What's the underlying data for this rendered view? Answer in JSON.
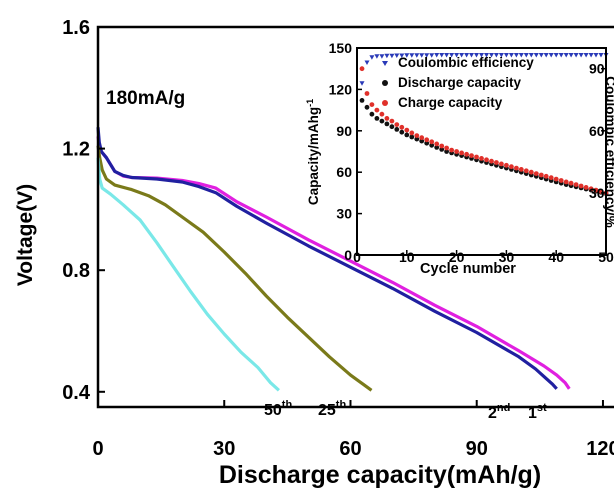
{
  "chart_data": [
    {
      "type": "line",
      "annotation": "180mA/g",
      "xlabel": "Discharge capacity(mAh/g)",
      "ylabel": "Voltage(V)",
      "xlim": [
        0,
        125
      ],
      "ylim": [
        0.35,
        1.6
      ],
      "xticks": [
        0,
        30,
        60,
        90,
        120
      ],
      "yticks": [
        0.4,
        0.8,
        1.2,
        1.6
      ],
      "xtick_labels": [
        "0",
        "30",
        "60",
        "90",
        "120"
      ],
      "ytick_labels": [
        "0.4",
        "0.8",
        "1.2",
        "1.6"
      ],
      "grid": false,
      "legend": "none",
      "series": [
        {
          "name": "1st",
          "label_base": "1",
          "label_sup": "st",
          "color": "#e020e0",
          "points": [
            [
              0,
              1.24
            ],
            [
              0.3,
              1.21
            ],
            [
              0.8,
              1.19
            ],
            [
              2,
              1.17
            ],
            [
              4,
              1.125
            ],
            [
              6,
              1.11
            ],
            [
              8,
              1.105
            ],
            [
              14,
              1.103
            ],
            [
              20,
              1.095
            ],
            [
              24,
              1.085
            ],
            [
              28,
              1.07
            ],
            [
              33,
              1.025
            ],
            [
              40,
              0.975
            ],
            [
              50,
              0.9
            ],
            [
              60,
              0.83
            ],
            [
              70,
              0.76
            ],
            [
              80,
              0.685
            ],
            [
              90,
              0.615
            ],
            [
              100,
              0.535
            ],
            [
              106,
              0.485
            ],
            [
              109,
              0.455
            ],
            [
              111,
              0.43
            ],
            [
              112,
              0.41
            ]
          ]
        },
        {
          "name": "2nd",
          "label_base": "2",
          "label_sup": "nd",
          "color": "#2020a0",
          "points": [
            [
              0,
              1.27
            ],
            [
              0.3,
              1.22
            ],
            [
              0.8,
              1.19
            ],
            [
              2,
              1.17
            ],
            [
              4,
              1.125
            ],
            [
              6,
              1.112
            ],
            [
              8,
              1.105
            ],
            [
              14,
              1.1
            ],
            [
              20,
              1.09
            ],
            [
              24,
              1.075
            ],
            [
              28,
              1.055
            ],
            [
              33,
              1.01
            ],
            [
              40,
              0.955
            ],
            [
              50,
              0.88
            ],
            [
              60,
              0.81
            ],
            [
              70,
              0.74
            ],
            [
              80,
              0.665
            ],
            [
              90,
              0.595
            ],
            [
              100,
              0.515
            ],
            [
              104,
              0.475
            ],
            [
              106,
              0.45
            ],
            [
              108,
              0.425
            ],
            [
              109,
              0.41
            ]
          ]
        },
        {
          "name": "25th",
          "label_base": "25",
          "label_sup": "th",
          "color": "#7a7a1a",
          "points": [
            [
              0,
              1.21
            ],
            [
              0.4,
              1.17
            ],
            [
              1,
              1.13
            ],
            [
              2,
              1.1
            ],
            [
              4,
              1.08
            ],
            [
              8,
              1.065
            ],
            [
              12,
              1.045
            ],
            [
              16,
              1.015
            ],
            [
              20,
              0.975
            ],
            [
              25,
              0.925
            ],
            [
              30,
              0.86
            ],
            [
              35,
              0.79
            ],
            [
              40,
              0.715
            ],
            [
              45,
              0.645
            ],
            [
              50,
              0.58
            ],
            [
              55,
              0.515
            ],
            [
              60,
              0.455
            ],
            [
              63,
              0.425
            ],
            [
              65,
              0.405
            ]
          ]
        },
        {
          "name": "50th",
          "label_base": "50",
          "label_sup": "th",
          "color": "#7ae8e8",
          "points": [
            [
              0,
              1.17
            ],
            [
              0.4,
              1.1
            ],
            [
              1,
              1.07
            ],
            [
              3,
              1.05
            ],
            [
              6,
              1.015
            ],
            [
              10,
              0.965
            ],
            [
              14,
              0.89
            ],
            [
              18,
              0.81
            ],
            [
              22,
              0.73
            ],
            [
              26,
              0.655
            ],
            [
              30,
              0.59
            ],
            [
              34,
              0.53
            ],
            [
              38,
              0.48
            ],
            [
              41,
              0.43
            ],
            [
              43,
              0.405
            ]
          ]
        }
      ]
    },
    {
      "type": "scatter",
      "xlabel": "Cycle number",
      "ylabel": "Capacity/mAhg-1",
      "y2label": "Coulombic efficiency/%",
      "xlim": [
        0,
        50
      ],
      "ylim": [
        0,
        150
      ],
      "y2lim": [
        0,
        100
      ],
      "xticks": [
        0,
        10,
        20,
        30,
        40,
        50
      ],
      "yticks": [
        0,
        30,
        60,
        90,
        120,
        150
      ],
      "y2ticks": [
        30,
        60,
        90
      ],
      "xtick_labels": [
        "0",
        "10",
        "20",
        "30",
        "40",
        "50"
      ],
      "ytick_labels": [
        "0",
        "30",
        "60",
        "90",
        "120",
        "150"
      ],
      "y2tick_labels": [
        "30",
        "60",
        "90"
      ],
      "legend": "top-right",
      "series": [
        {
          "name": "Coulombic efficiency",
          "axis": "right",
          "color": "#2a3ab8",
          "values": [
            83,
            93,
            95.5,
            96,
            96,
            96.3,
            96.3,
            96.4,
            96.4,
            96.5,
            96.5,
            96.5,
            96.5,
            96.5,
            96.5,
            96.6,
            96.6,
            96.6,
            96.6,
            96.6,
            96.6,
            96.6,
            96.6,
            96.6,
            96.6,
            96.6,
            96.6,
            96.6,
            96.6,
            96.6,
            96.6,
            96.6,
            96.6,
            96.6,
            96.6,
            96.6,
            96.6,
            96.6,
            96.6,
            96.6,
            96.6,
            96.6,
            96.6,
            96.6,
            96.6,
            96.6,
            96.6,
            96.6,
            96.6,
            96.6
          ]
        },
        {
          "name": "Discharge capacity",
          "axis": "left",
          "color": "#111111",
          "values": [
            112,
            107,
            102,
            99,
            97,
            95,
            93,
            91,
            89,
            87,
            85.5,
            84,
            82.5,
            81,
            79.5,
            78,
            76.5,
            75,
            74,
            73,
            72,
            71,
            70,
            69,
            68,
            67,
            66,
            65,
            64,
            63,
            62,
            61,
            60,
            59,
            58,
            57,
            56,
            55,
            54,
            53,
            52,
            51,
            50.2,
            49.4,
            48.6,
            47.8,
            47,
            46.2,
            45.4,
            44.6
          ]
        },
        {
          "name": "Charge capacity",
          "axis": "left",
          "color": "#e0302a",
          "values": [
            135,
            117,
            109,
            105,
            102,
            99,
            97,
            94.5,
            92.5,
            90.5,
            88.5,
            86.5,
            85,
            83.5,
            82,
            80.5,
            79,
            77.5,
            76,
            75,
            74,
            73,
            72,
            71,
            70,
            69,
            68,
            67,
            66,
            65,
            64,
            63,
            62,
            61,
            60,
            59,
            58,
            57,
            56,
            55,
            54,
            53,
            52,
            51,
            50,
            49,
            48,
            47,
            46,
            45
          ]
        }
      ]
    }
  ]
}
